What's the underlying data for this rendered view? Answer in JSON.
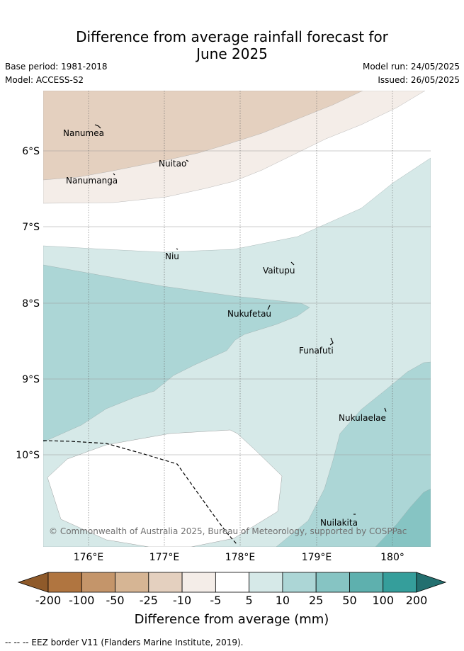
{
  "title": {
    "line1": "Difference from average rainfall forecast for",
    "line2": "June 2025"
  },
  "meta": {
    "base_period": "Base period: 1981-2018",
    "model": "Model: ACCESS-S2",
    "model_run": "Model run: 24/05/2025",
    "issued": "Issued: 26/05/2025"
  },
  "map": {
    "latitude_labels": [
      "6°S",
      "7°S",
      "8°S",
      "9°S",
      "10°S"
    ],
    "longitude_labels": [
      "176°E",
      "177°E",
      "178°E",
      "179°E",
      "180°"
    ],
    "places": [
      "Nanumea",
      "Nuitao",
      "Nanumanga",
      "Niu",
      "Vaitupu",
      "Nukufetau",
      "Funafuti",
      "Nukulaelae",
      "Nuilakita"
    ],
    "copyright": "© Commonwealth of Australia 2025, Bureau of Meteorology, supported by COSPPac"
  },
  "colorbar": {
    "title": "Difference from average (mm)",
    "ticks": [
      "-200",
      "-100",
      "-50",
      "-25",
      "-10",
      "-5",
      "5",
      "10",
      "25",
      "50",
      "100",
      "200"
    ],
    "colors": [
      "#8f5a2a",
      "#b07540",
      "#c4956a",
      "#d6b594",
      "#e4d0bf",
      "#f4ede8",
      "#ffffff",
      "#d6e9e8",
      "#acd6d6",
      "#86c4c3",
      "#5eb0ae",
      "#359e9b",
      "#236f6f"
    ]
  },
  "footnote": "-- -- -- EEZ border V11 (Flanders Marine Institute, 2019)."
}
